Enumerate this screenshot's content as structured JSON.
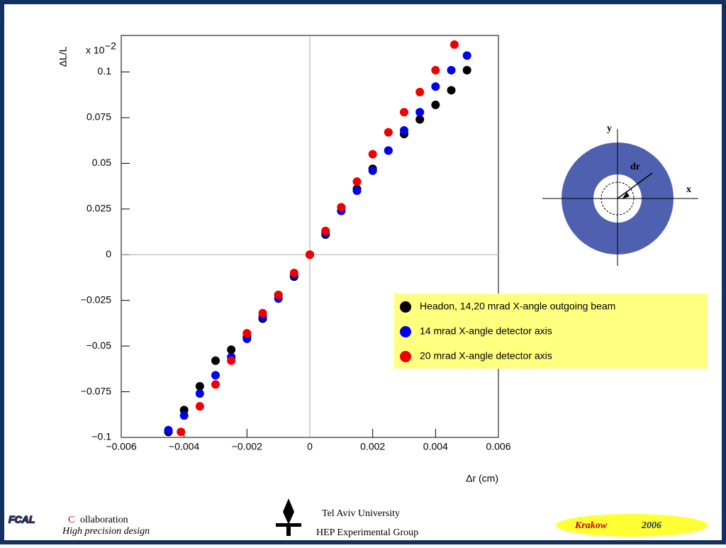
{
  "chart_data": {
    "type": "scatter",
    "xlabel": "Δr (cm)",
    "ylabel": "ΔL/L",
    "multiplier": "x 10",
    "multiplier_exp": "−2",
    "xlim": [
      -0.006,
      0.006
    ],
    "ylim": [
      -0.1,
      0.12
    ],
    "xticks": [
      {
        "value": -0.006,
        "label": "−0.006"
      },
      {
        "value": -0.004,
        "label": "−0.004"
      },
      {
        "value": -0.002,
        "label": "−0.002"
      },
      0,
      0.002,
      0.004,
      0.006
    ],
    "yticks": [
      {
        "value": -0.1,
        "label": "−0.1"
      },
      {
        "value": -0.075,
        "label": "−0.075"
      },
      {
        "value": -0.05,
        "label": "−0.05"
      },
      {
        "value": -0.025,
        "label": "−0.025"
      },
      0,
      0.025,
      0.05,
      0.075,
      0.1
    ],
    "grid": "zero-lines",
    "legend": "right",
    "series": [
      {
        "name": "Headon, 14,20 mrad X-angle outgoing beam",
        "color": "#000000",
        "x": [
          -0.0045,
          -0.004,
          -0.0035,
          -0.003,
          -0.0025,
          -0.002,
          -0.0015,
          -0.001,
          -0.0005,
          0,
          0.0005,
          0.001,
          0.0015,
          0.002,
          0.0025,
          0.003,
          0.0035,
          0.004,
          0.0045,
          0.005
        ],
        "values": [
          -0.097,
          -0.085,
          -0.072,
          -0.058,
          -0.052,
          -0.045,
          -0.035,
          -0.022,
          -0.012,
          0,
          0.011,
          0.024,
          0.036,
          0.047,
          0.057,
          0.066,
          0.074,
          0.082,
          0.09,
          0.101
        ]
      },
      {
        "name": "14 mrad X-angle detector axis",
        "color": "#0000ee",
        "x": [
          -0.0045,
          -0.004,
          -0.0035,
          -0.003,
          -0.0025,
          -0.002,
          -0.0015,
          -0.001,
          -0.0005,
          0,
          0.0005,
          0.001,
          0.0015,
          0.002,
          0.0025,
          0.003,
          0.0035,
          0.004,
          0.0045,
          0.005
        ],
        "values": [
          -0.096,
          -0.088,
          -0.076,
          -0.066,
          -0.056,
          -0.046,
          -0.034,
          -0.024,
          -0.011,
          0,
          0.012,
          0.024,
          0.035,
          0.046,
          0.057,
          0.068,
          0.078,
          0.092,
          0.101,
          0.109
        ]
      },
      {
        "name": "20 mrad X-angle detector axis",
        "color": "#ee0000",
        "x": [
          -0.0041,
          -0.0035,
          -0.003,
          -0.0025,
          -0.002,
          -0.0015,
          -0.001,
          -0.0005,
          0,
          0.0005,
          0.001,
          0.0015,
          0.002,
          0.0025,
          0.003,
          0.0035,
          0.004,
          0.0046
        ],
        "values": [
          -0.097,
          -0.083,
          -0.071,
          -0.058,
          -0.043,
          -0.032,
          -0.022,
          -0.01,
          0,
          0.013,
          0.026,
          0.04,
          0.055,
          0.067,
          0.078,
          0.089,
          0.101,
          0.115
        ]
      }
    ]
  },
  "diagram": {
    "y": "y",
    "x": "x",
    "dr": "dr"
  },
  "footer": {
    "logo": "FCAL",
    "collab_initial": "C",
    "collab_rest": "ollaboration",
    "tagline": "High precision design",
    "university": "Tel Aviv University",
    "group": "HEP Experimental Group",
    "city": "Krakow",
    "year": "2006"
  }
}
